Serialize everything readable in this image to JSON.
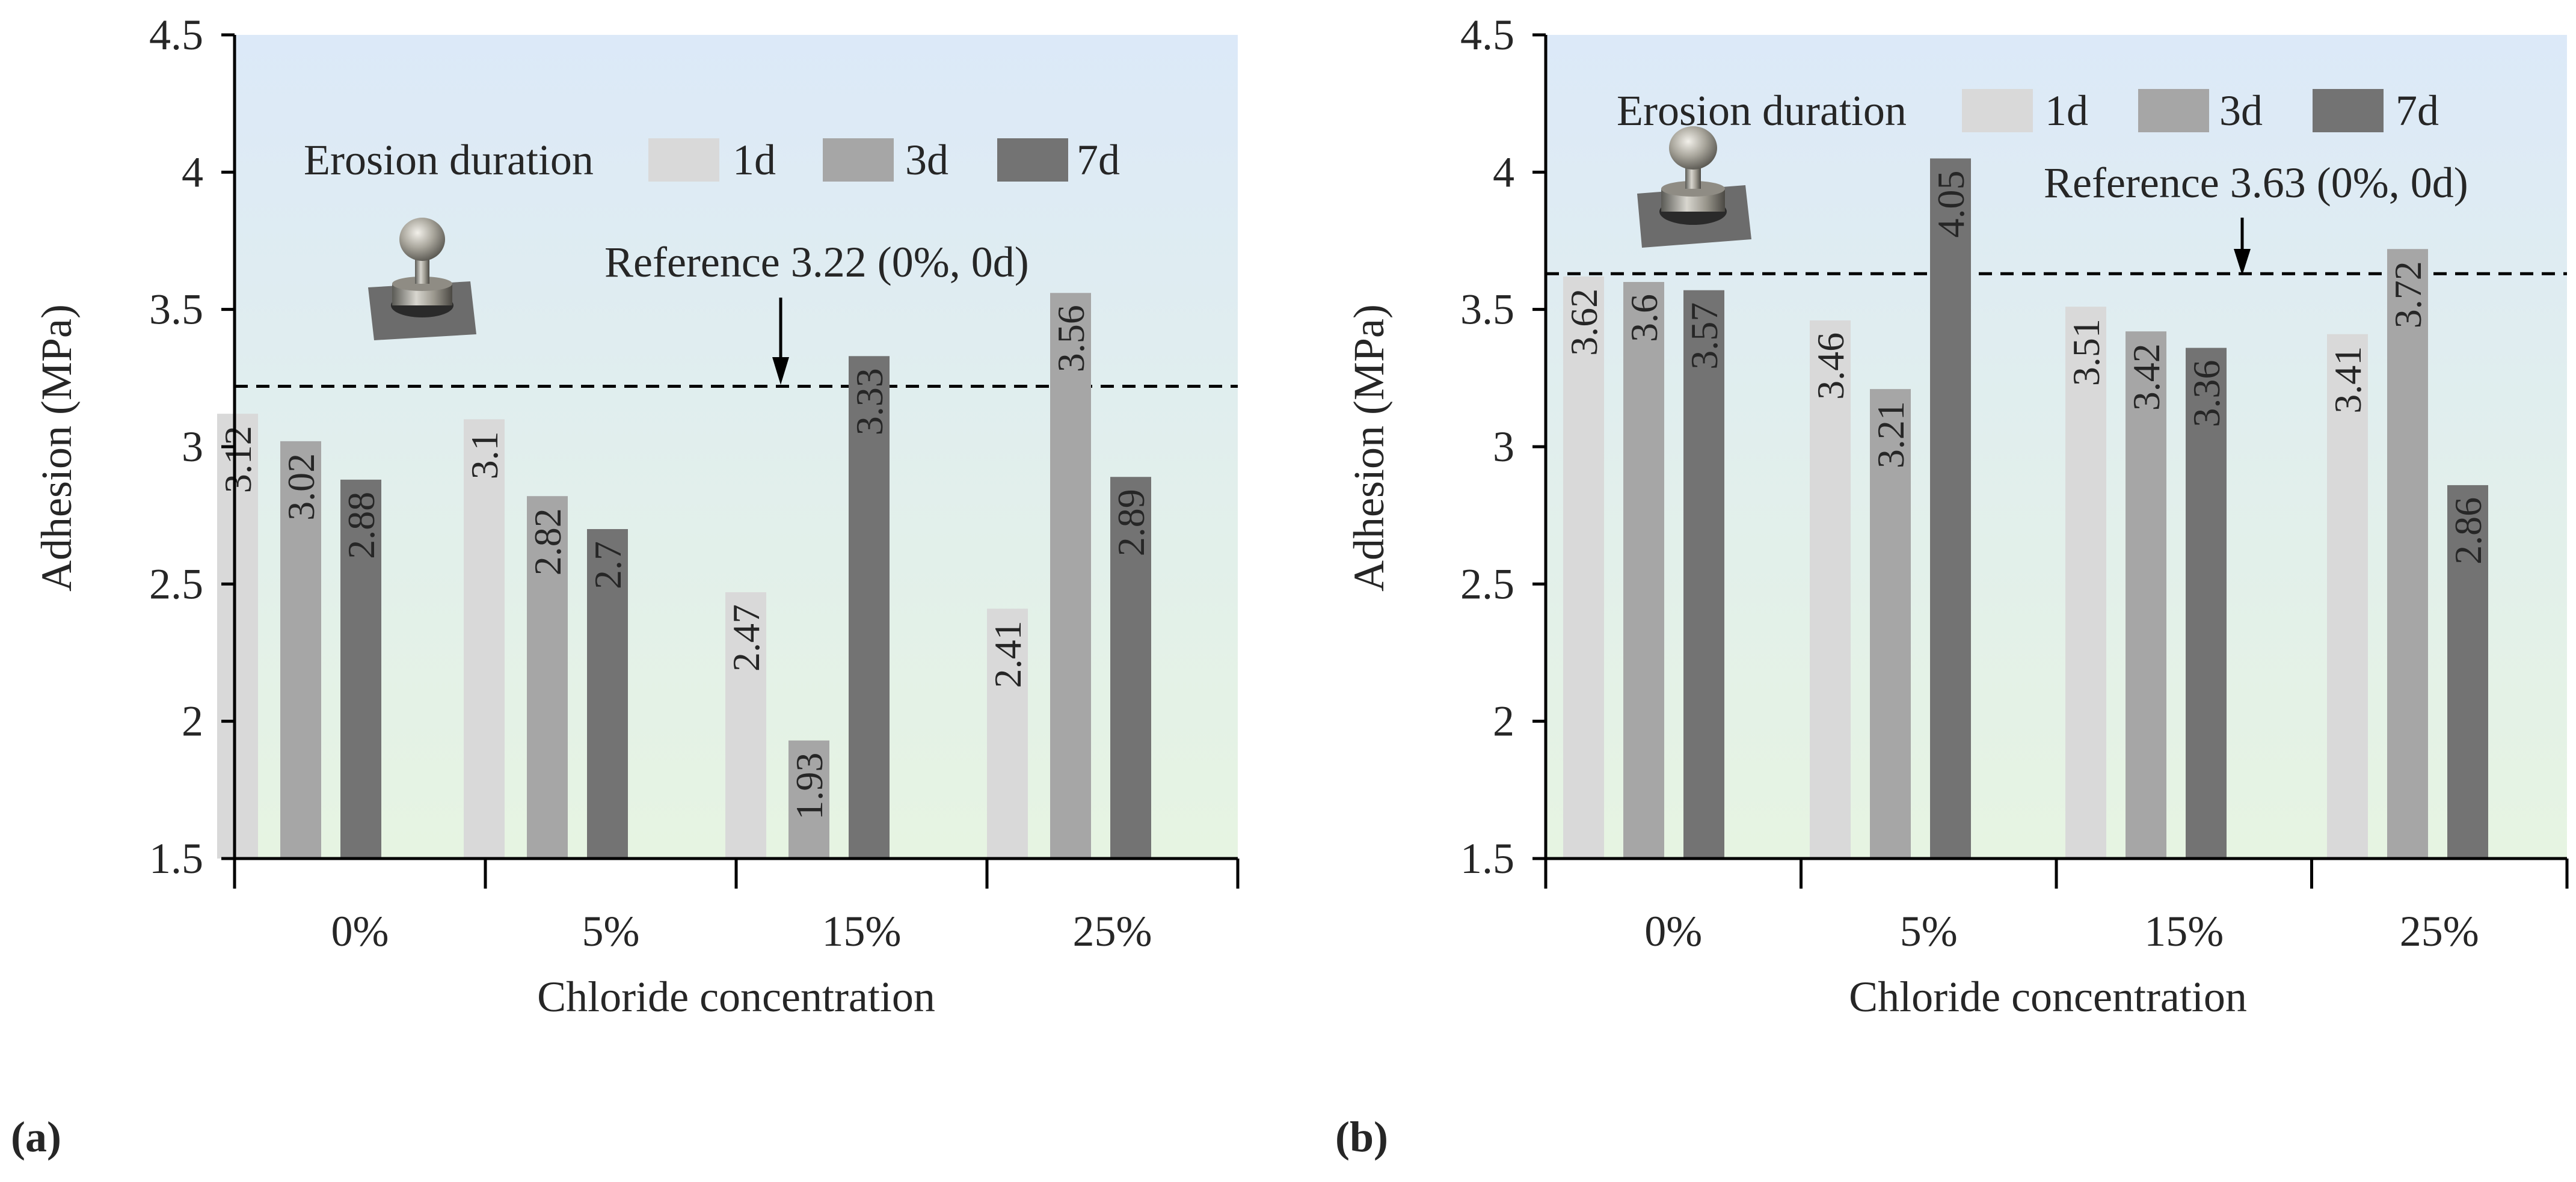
{
  "panels": [
    {
      "panel_label": "(a)",
      "reference_label": "Reference 3.22 (0%, 0d)",
      "legend_title": "Erosion duration",
      "colors": {
        "1d": "#d9d9d9",
        "3d": "#a6a6a6",
        "7d": "#737373",
        "bg_top": "#dce9f8",
        "bg_bottom": "#e6f4e2"
      }
    },
    {
      "panel_label": "(b)",
      "reference_label": "Reference 3.63 (0%, 0d)",
      "legend_title": "Erosion duration",
      "colors": {
        "1d": "#d9d9d9",
        "3d": "#a6a6a6",
        "7d": "#737373",
        "bg_top": "#dce9f8",
        "bg_bottom": "#e6f4e2"
      }
    }
  ],
  "chart_data": [
    {
      "type": "bar",
      "title": "",
      "xlabel": "Chloride concentration",
      "ylabel": "Adhesion (MPa)",
      "ylim": [
        1.5,
        4.5
      ],
      "yticks": [
        1.5,
        2,
        2.5,
        3,
        3.5,
        4,
        4.5
      ],
      "ytick_labels": [
        "1.5",
        "2",
        "2.5",
        "3",
        "3.5",
        "4",
        "4.5"
      ],
      "categories": [
        "0%",
        "5%",
        "15%",
        "25%"
      ],
      "legend": {
        "title": "Erosion duration",
        "position": "top-right"
      },
      "reference": {
        "value": 3.22,
        "label": "Reference 3.22 (0%, 0d)"
      },
      "series": [
        {
          "name": "1d",
          "values": [
            3.12,
            3.1,
            2.47,
            2.41
          ],
          "labels": [
            "3.12",
            "3.1",
            "2.47",
            "2.41"
          ]
        },
        {
          "name": "3d",
          "values": [
            3.02,
            2.82,
            1.93,
            3.56
          ],
          "labels": [
            "3.02",
            "2.82",
            "1.93",
            "3.56"
          ]
        },
        {
          "name": "7d",
          "values": [
            2.88,
            2.7,
            3.33,
            2.89
          ],
          "labels": [
            "2.88",
            "2.7",
            "3.33",
            "2.89"
          ]
        }
      ]
    },
    {
      "type": "bar",
      "title": "",
      "xlabel": "Chloride concentration",
      "ylabel": "Adhesion (MPa)",
      "ylim": [
        1.5,
        4.5
      ],
      "yticks": [
        1.5,
        2,
        2.5,
        3,
        3.5,
        4,
        4.5
      ],
      "ytick_labels": [
        "1.5",
        "2",
        "2.5",
        "3",
        "3.5",
        "4",
        "4.5"
      ],
      "categories": [
        "0%",
        "5%",
        "15%",
        "25%"
      ],
      "legend": {
        "title": "Erosion duration",
        "position": "top-right"
      },
      "reference": {
        "value": 3.63,
        "label": "Reference 3.63 (0%, 0d)"
      },
      "series": [
        {
          "name": "1d",
          "values": [
            3.62,
            3.46,
            3.51,
            3.41
          ],
          "labels": [
            "3.62",
            "3.46",
            "3.51",
            "3.41"
          ]
        },
        {
          "name": "3d",
          "values": [
            3.6,
            3.21,
            3.42,
            3.72
          ],
          "labels": [
            "3.6",
            "3.21",
            "3.42",
            "3.72"
          ]
        },
        {
          "name": "7d",
          "values": [
            3.57,
            4.05,
            3.36,
            2.86
          ],
          "labels": [
            "3.57",
            "4.05",
            "3.36",
            "2.86"
          ]
        }
      ]
    }
  ]
}
